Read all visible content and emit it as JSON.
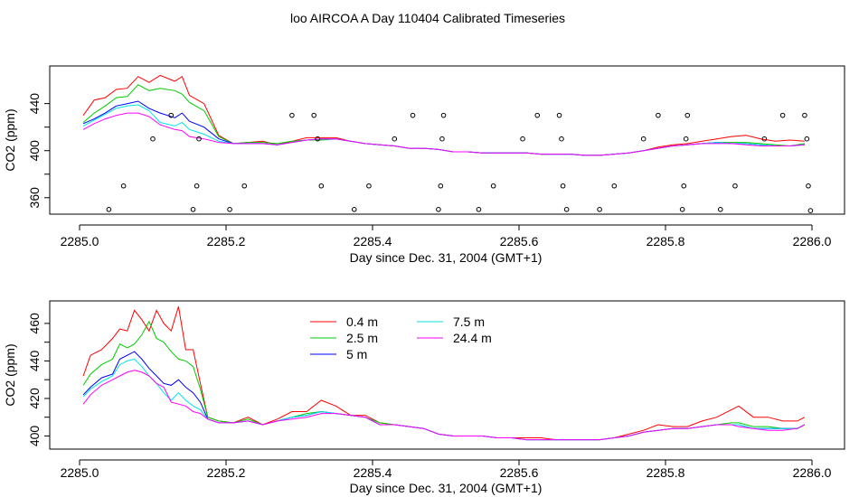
{
  "title": "loo AIRCOA A  Day 110404  Calibrated Timeseries",
  "chart_data": [
    {
      "type": "line",
      "xlabel": "Day since Dec. 31, 2004 (GMT+1)",
      "ylabel": "CO2 (ppm)",
      "xlim": [
        2285.0,
        2286.0
      ],
      "ylim": [
        346,
        472
      ],
      "xticks": [
        "2285.0",
        "2285.2",
        "2285.4",
        "2285.6",
        "2285.8",
        "2286.0"
      ],
      "yticks": [
        "360",
        "400",
        "440"
      ],
      "ytick_values": [
        360,
        400,
        440
      ],
      "yminor": [
        380,
        420
      ],
      "colors": [
        "#ff0000",
        "#00cc00",
        "#0000ff",
        "#00e5e5",
        "#ff00ff"
      ],
      "x": [
        2285.005,
        2285.02,
        2285.035,
        2285.05,
        2285.065,
        2285.08,
        2285.095,
        2285.11,
        2285.13,
        2285.14,
        2285.15,
        2285.17,
        2285.19,
        2285.21,
        2285.23,
        2285.25,
        2285.27,
        2285.29,
        2285.31,
        2285.33,
        2285.35,
        2285.37,
        2285.39,
        2285.41,
        2285.43,
        2285.45,
        2285.47,
        2285.49,
        2285.51,
        2285.53,
        2285.55,
        2285.57,
        2285.59,
        2285.61,
        2285.63,
        2285.65,
        2285.67,
        2285.69,
        2285.71,
        2285.73,
        2285.75,
        2285.77,
        2285.79,
        2285.81,
        2285.83,
        2285.85,
        2285.87,
        2285.89,
        2285.91,
        2285.93,
        2285.95,
        2285.97,
        2285.99
      ],
      "series": [
        {
          "values": [
            430,
            443,
            445,
            452,
            453,
            463,
            458,
            464,
            459,
            463,
            447,
            440,
            413,
            406,
            407,
            408,
            405,
            408,
            411,
            411,
            411,
            408,
            406,
            405,
            404,
            402,
            402,
            401,
            399,
            399,
            398,
            398,
            398,
            398,
            397,
            397,
            397,
            396,
            396,
            397,
            398,
            400,
            403,
            405,
            406,
            408,
            410,
            412,
            413,
            410,
            408,
            409,
            408
          ]
        },
        {
          "values": [
            424,
            432,
            438,
            445,
            446,
            456,
            451,
            453,
            451,
            448,
            441,
            434,
            412,
            406,
            407,
            407,
            406,
            408,
            409,
            409,
            410,
            408,
            406,
            405,
            404,
            402,
            402,
            401,
            399,
            399,
            398,
            398,
            398,
            398,
            397,
            397,
            397,
            396,
            396,
            397,
            398,
            400,
            402,
            404,
            405,
            406,
            407,
            407,
            407,
            406,
            405,
            404,
            406
          ]
        },
        {
          "values": [
            423,
            427,
            432,
            438,
            440,
            442,
            436,
            432,
            428,
            432,
            425,
            420,
            410,
            406,
            406,
            406,
            405,
            407,
            409,
            410,
            410,
            408,
            406,
            405,
            404,
            402,
            402,
            401,
            399,
            399,
            398,
            398,
            398,
            398,
            397,
            397,
            397,
            396,
            396,
            397,
            398,
            400,
            402,
            404,
            405,
            406,
            407,
            406,
            406,
            405,
            404,
            404,
            405
          ]
        },
        {
          "values": [
            421,
            426,
            431,
            436,
            438,
            439,
            434,
            424,
            421,
            424,
            418,
            414,
            408,
            406,
            406,
            406,
            405,
            407,
            409,
            410,
            410,
            408,
            406,
            405,
            404,
            402,
            402,
            401,
            399,
            399,
            398,
            398,
            398,
            398,
            397,
            397,
            397,
            396,
            396,
            397,
            398,
            400,
            402,
            404,
            405,
            406,
            407,
            406,
            406,
            405,
            404,
            404,
            405
          ]
        },
        {
          "values": [
            418,
            423,
            427,
            430,
            432,
            432,
            429,
            422,
            418,
            417,
            412,
            410,
            407,
            406,
            406,
            406,
            405,
            407,
            409,
            410,
            410,
            408,
            406,
            405,
            404,
            402,
            402,
            401,
            399,
            399,
            398,
            398,
            398,
            398,
            397,
            397,
            397,
            396,
            396,
            397,
            398,
            400,
            402,
            404,
            405,
            406,
            406,
            406,
            405,
            404,
            404,
            404,
            405
          ]
        }
      ],
      "points": {
        "x": [
          2285.04,
          2285.06,
          2285.1,
          2285.125,
          2285.155,
          2285.16,
          2285.163,
          2285.205,
          2285.225,
          2285.29,
          2285.32,
          2285.325,
          2285.33,
          2285.375,
          2285.395,
          2285.43,
          2285.455,
          2285.49,
          2285.493,
          2285.495,
          2285.497,
          2285.545,
          2285.565,
          2285.605,
          2285.625,
          2285.655,
          2285.658,
          2285.66,
          2285.665,
          2285.71,
          2285.73,
          2285.77,
          2285.79,
          2285.823,
          2285.825,
          2285.828,
          2285.83,
          2285.875,
          2285.895,
          2285.935,
          2285.96,
          2285.99,
          2285.993,
          2285.995,
          2285.998
        ],
        "y": [
          350,
          370,
          410,
          430,
          350,
          370,
          410,
          350,
          370,
          430,
          430,
          410,
          370,
          350,
          370,
          410,
          430,
          350,
          370,
          410,
          430,
          350,
          370,
          410,
          430,
          430,
          410,
          370,
          350,
          350,
          370,
          410,
          430,
          350,
          370,
          410,
          430,
          350,
          370,
          410,
          430,
          430,
          410,
          370,
          349
        ]
      }
    },
    {
      "type": "line",
      "xlabel": "Day since Dec. 31, 2004 (GMT+1)",
      "ylabel": "CO2 (ppm)",
      "xlim": [
        2285.0,
        2286.0
      ],
      "ylim": [
        393,
        472
      ],
      "xticks": [
        "2285.0",
        "2285.2",
        "2285.4",
        "2285.6",
        "2285.8",
        "2286.0"
      ],
      "yticks": [
        "400",
        "420",
        "440",
        "460"
      ],
      "ytick_values": [
        400,
        420,
        440,
        460
      ],
      "yminor": [
        410,
        430,
        450
      ],
      "colors": [
        "#ff0000",
        "#00cc00",
        "#0000ff",
        "#00e5e5",
        "#ff00ff"
      ],
      "legend": [
        {
          "label": "0.4 m",
          "color": "#ff0000"
        },
        {
          "label": "2.5 m",
          "color": "#00cc00"
        },
        {
          "label": "5 m",
          "color": "#0000ff"
        },
        {
          "label": "7.5 m",
          "color": "#00e5e5"
        },
        {
          "label": "24.4 m",
          "color": "#ff00ff"
        }
      ],
      "x": [
        2285.005,
        2285.015,
        2285.03,
        2285.045,
        2285.055,
        2285.065,
        2285.075,
        2285.085,
        2285.095,
        2285.105,
        2285.115,
        2285.125,
        2285.135,
        2285.145,
        2285.155,
        2285.165,
        2285.175,
        2285.19,
        2285.21,
        2285.23,
        2285.25,
        2285.27,
        2285.29,
        2285.31,
        2285.33,
        2285.35,
        2285.37,
        2285.39,
        2285.41,
        2285.43,
        2285.45,
        2285.47,
        2285.49,
        2285.51,
        2285.53,
        2285.55,
        2285.57,
        2285.59,
        2285.61,
        2285.63,
        2285.65,
        2285.67,
        2285.69,
        2285.71,
        2285.73,
        2285.75,
        2285.77,
        2285.79,
        2285.81,
        2285.83,
        2285.85,
        2285.87,
        2285.89,
        2285.9,
        2285.92,
        2285.94,
        2285.96,
        2285.98,
        2285.99
      ],
      "series": [
        {
          "values": [
            432,
            443,
            446,
            452,
            457,
            456,
            467,
            462,
            456,
            467,
            460,
            456,
            469,
            446,
            446,
            428,
            410,
            408,
            407,
            410,
            406,
            409,
            413,
            413,
            419,
            416,
            411,
            411,
            407,
            406,
            405,
            404,
            401,
            400,
            400,
            400,
            399,
            399,
            399,
            399,
            398,
            398,
            398,
            398,
            399,
            401,
            403,
            406,
            405,
            405,
            408,
            410,
            414,
            416,
            410,
            410,
            408,
            408,
            410
          ]
        },
        {
          "values": [
            427,
            433,
            438,
            441,
            449,
            447,
            449,
            454,
            461,
            452,
            450,
            445,
            441,
            440,
            437,
            425,
            410,
            408,
            407,
            409,
            406,
            408,
            410,
            412,
            413,
            412,
            411,
            410,
            407,
            406,
            405,
            404,
            401,
            400,
            400,
            400,
            399,
            399,
            398,
            398,
            398,
            398,
            398,
            398,
            399,
            400,
            402,
            403,
            404,
            404,
            405,
            406,
            407,
            407,
            405,
            405,
            404,
            404,
            406
          ]
        },
        {
          "values": [
            422,
            426,
            431,
            433,
            441,
            443,
            445,
            441,
            436,
            432,
            428,
            427,
            430,
            426,
            423,
            418,
            409,
            407,
            407,
            408,
            406,
            408,
            410,
            411,
            413,
            412,
            411,
            410,
            406,
            406,
            405,
            404,
            401,
            400,
            400,
            400,
            399,
            399,
            398,
            398,
            398,
            398,
            398,
            398,
            399,
            400,
            402,
            403,
            404,
            404,
            405,
            406,
            406,
            406,
            404,
            404,
            404,
            404,
            406
          ]
        },
        {
          "values": [
            421,
            425,
            429,
            432,
            438,
            440,
            441,
            437,
            432,
            428,
            423,
            419,
            423,
            419,
            416,
            414,
            409,
            407,
            407,
            408,
            406,
            408,
            410,
            411,
            413,
            412,
            411,
            410,
            406,
            406,
            405,
            404,
            401,
            400,
            400,
            400,
            399,
            399,
            398,
            398,
            398,
            398,
            398,
            398,
            399,
            400,
            402,
            403,
            404,
            404,
            405,
            406,
            406,
            406,
            404,
            404,
            404,
            404,
            406
          ]
        },
        {
          "values": [
            417,
            422,
            427,
            430,
            432,
            434,
            435,
            434,
            432,
            428,
            426,
            418,
            417,
            416,
            413,
            412,
            409,
            407,
            407,
            408,
            406,
            408,
            409,
            410,
            412,
            412,
            411,
            410,
            406,
            406,
            405,
            404,
            401,
            400,
            400,
            400,
            399,
            399,
            398,
            398,
            398,
            398,
            398,
            398,
            399,
            400,
            402,
            403,
            404,
            404,
            405,
            406,
            406,
            405,
            404,
            403,
            403,
            404,
            406
          ]
        }
      ]
    }
  ]
}
